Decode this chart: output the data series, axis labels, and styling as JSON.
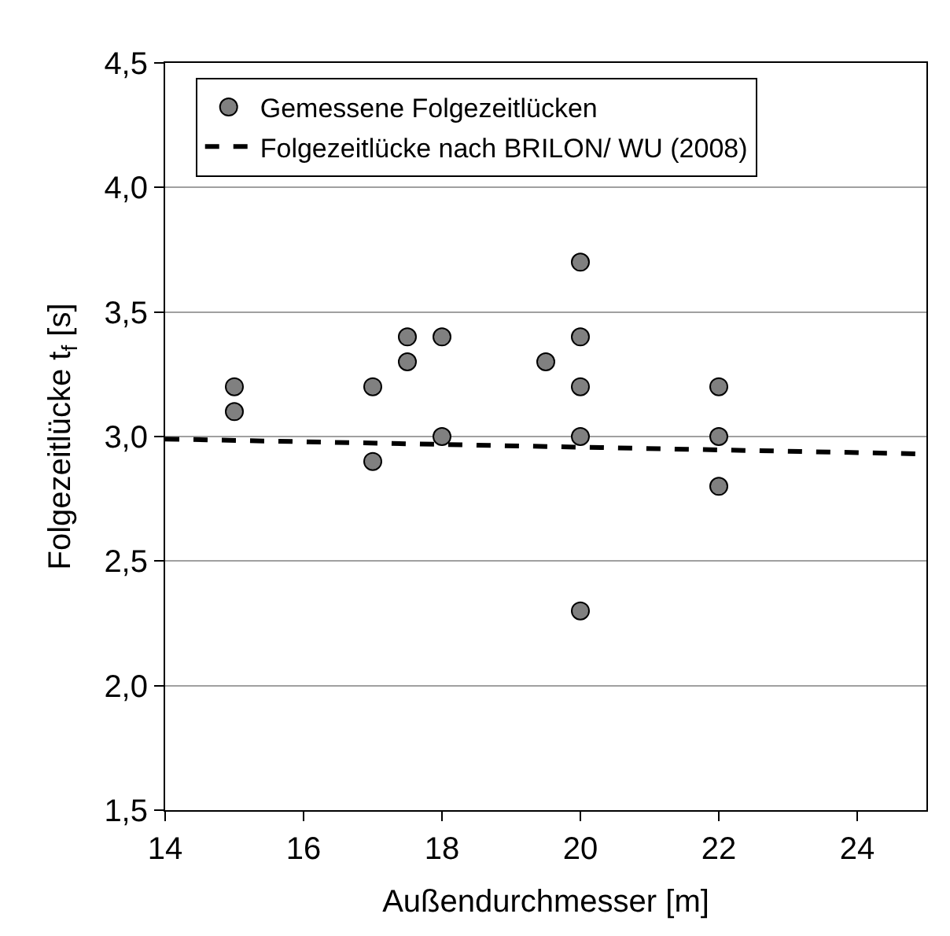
{
  "chart_data": {
    "type": "scatter",
    "xlabel": "Außendurchmesser [m]",
    "ylabel": "Folgezeitlücke t$_{f}$ [s]",
    "xlim": [
      14,
      25
    ],
    "xticks": [
      14,
      16,
      18,
      20,
      22,
      24
    ],
    "ylim": [
      1.5,
      4.5
    ],
    "yticks": [
      {
        "value": 1.5,
        "label": "1,5"
      },
      {
        "value": 2.0,
        "label": "2,0"
      },
      {
        "value": 2.5,
        "label": "2,5"
      },
      {
        "value": 3.0,
        "label": "3,0"
      },
      {
        "value": 3.5,
        "label": "3,5"
      },
      {
        "value": 4.0,
        "label": "4,0"
      },
      {
        "value": 4.5,
        "label": "4,5"
      }
    ],
    "grid": "y",
    "legend": "top",
    "series": [
      {
        "name": "Gemessene Folgezeitlücken",
        "marker": "circle",
        "color": "#808080",
        "x": [
          15,
          15,
          17,
          17,
          17.5,
          17.5,
          18,
          18,
          19.5,
          20,
          20,
          20,
          20,
          20,
          22,
          22,
          22
        ],
        "values": [
          3.2,
          3.1,
          3.2,
          2.9,
          3.4,
          3.3,
          3.4,
          3.0,
          3.3,
          3.7,
          3.4,
          3.2,
          3.0,
          2.3,
          3.2,
          3.0,
          2.8
        ]
      },
      {
        "name": "Folgezeitlücke nach BRILON/ WU (2008)",
        "type": "line",
        "line_style": "dashed",
        "color": "#000000",
        "x": [
          14,
          25
        ],
        "values": [
          2.99,
          2.93
        ]
      }
    ]
  }
}
